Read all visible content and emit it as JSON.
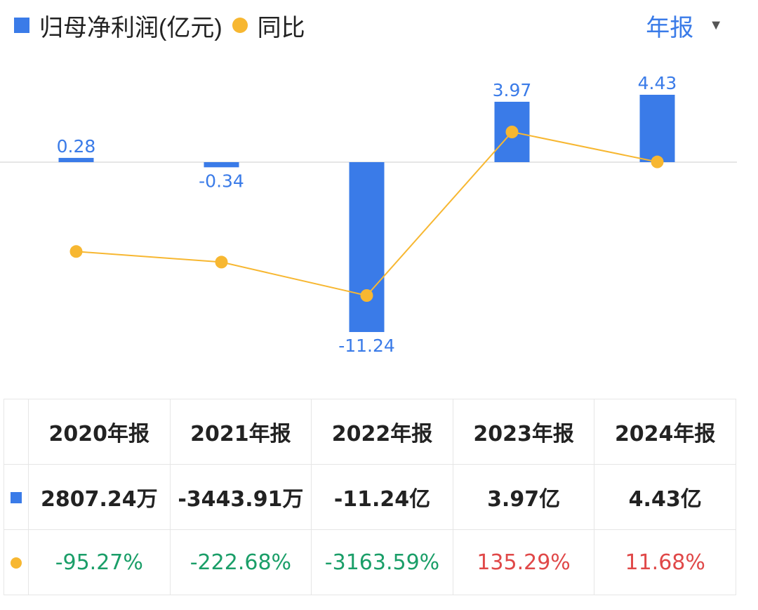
{
  "legend": {
    "series1_label": "归母净利润(亿元)",
    "series2_label": "同比"
  },
  "period_selector": {
    "label": "年报"
  },
  "colors": {
    "bar": "#3a7be8",
    "line": "#f7b731",
    "negative_pct": "#1a9e68",
    "positive_pct": "#e04848"
  },
  "chart_data": {
    "type": "bar",
    "title": "",
    "xlabel": "",
    "ylabel": "",
    "categories": [
      "2020年报",
      "2021年报",
      "2022年报",
      "2023年报",
      "2024年报"
    ],
    "series": [
      {
        "name": "归母净利润(亿元)",
        "type": "bar",
        "values": [
          0.28,
          -0.34,
          -11.24,
          3.97,
          4.43
        ],
        "labels": [
          "0.28",
          "-0.34",
          "-11.24",
          "3.97",
          "4.43"
        ]
      },
      {
        "name": "同比",
        "type": "line",
        "values": [
          -95.27,
          -222.68,
          -3163.59,
          135.29,
          11.68
        ]
      }
    ],
    "ylim": [
      -11.24,
      4.43
    ]
  },
  "table": {
    "headers": [
      "2020年报",
      "2021年报",
      "2022年报",
      "2023年报",
      "2024年报"
    ],
    "profit_row": [
      "2807.24万",
      "-3443.91万",
      "-11.24亿",
      "3.97亿",
      "4.43亿"
    ],
    "yoy_row": [
      "-95.27%",
      "-222.68%",
      "-3163.59%",
      "135.29%",
      "11.68%"
    ]
  }
}
